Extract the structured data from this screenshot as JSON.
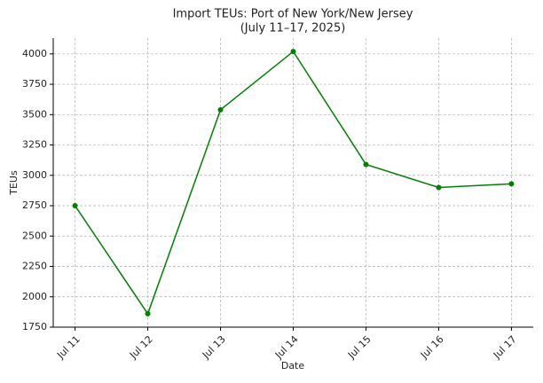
{
  "chart_data": {
    "type": "line",
    "title": "Import TEUs: Port of New York/New Jersey",
    "subtitle": "(July 11–17, 2025)",
    "x_label": "Date",
    "y_label": "TEUs",
    "categories": [
      "Jul 11",
      "Jul 12",
      "Jul 13",
      "Jul 14",
      "Jul 15",
      "Jul 16",
      "Jul 17"
    ],
    "values": [
      2750,
      1860,
      3540,
      4020,
      3090,
      2900,
      2930
    ],
    "color": "#008000",
    "ylim": [
      1750,
      4130
    ],
    "yticks": [
      1750,
      2000,
      2250,
      2500,
      2750,
      3000,
      3250,
      3500,
      3750,
      4000
    ],
    "grid": true
  }
}
